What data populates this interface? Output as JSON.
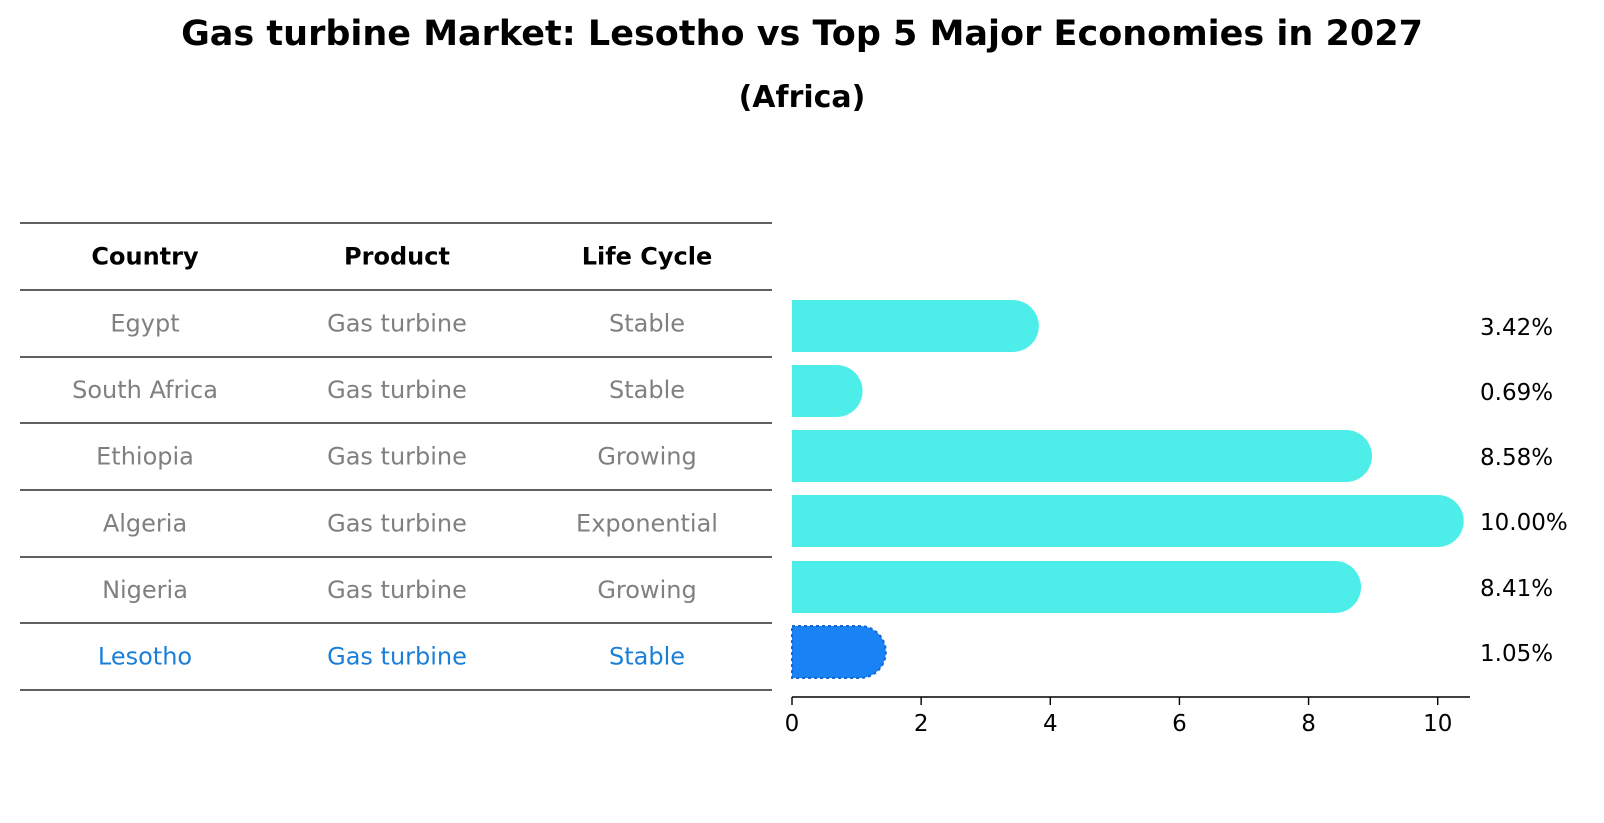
{
  "title": "Gas turbine Market: Lesotho vs Top 5 Major Economies in 2027",
  "subtitle": "(Africa)",
  "colors": {
    "bar": "#4DEEEA",
    "highlight_bar": "#1982F5",
    "row_text": "#808080",
    "highlight_text": "#1B7FD8"
  },
  "table": {
    "headers": [
      "Country",
      "Product",
      "Life Cycle"
    ],
    "rows": [
      [
        "Egypt",
        "Gas turbine",
        "Stable"
      ],
      [
        "South Africa",
        "Gas turbine",
        "Stable"
      ],
      [
        "Ethiopia",
        "Gas turbine",
        "Growing"
      ],
      [
        "Algeria",
        "Gas turbine",
        "Exponential"
      ],
      [
        "Nigeria",
        "Gas turbine",
        "Growing"
      ],
      [
        "Lesotho",
        "Gas turbine",
        "Stable"
      ]
    ],
    "highlight_row": "Lesotho"
  },
  "chart_data": {
    "type": "bar",
    "orientation": "horizontal",
    "categories": [
      "Egypt",
      "South Africa",
      "Ethiopia",
      "Algeria",
      "Nigeria",
      "Lesotho"
    ],
    "values": [
      3.42,
      0.69,
      8.58,
      10.0,
      8.41,
      1.05
    ],
    "value_labels": [
      "3.42%",
      "0.69%",
      "8.58%",
      "10.00%",
      "8.41%",
      "1.05%"
    ],
    "xlim": [
      0,
      10.5
    ],
    "xticks": [
      0,
      2,
      4,
      6,
      8,
      10
    ],
    "highlight": "Lesotho",
    "title": "Gas turbine Market: Lesotho vs Top 5 Major Economies in 2027",
    "subtitle": "(Africa)"
  }
}
